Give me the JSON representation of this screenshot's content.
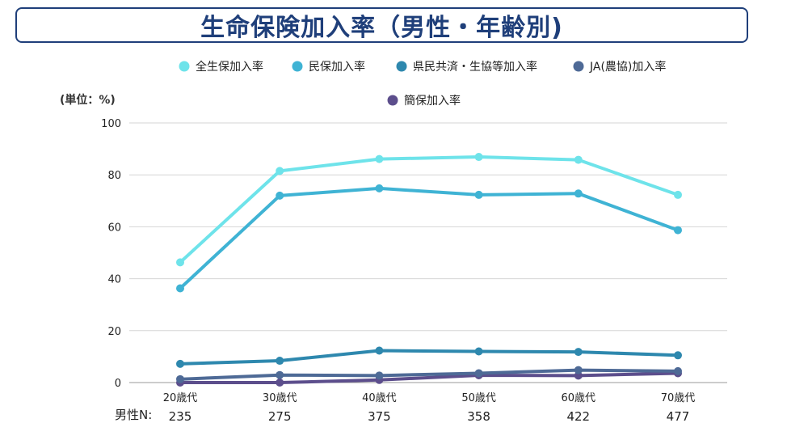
{
  "title": "生命保険加入率（男性・年齢別)",
  "chart_data": {
    "type": "line",
    "unit_label": "(単位：%)",
    "categories": [
      "20歳代",
      "30歳代",
      "40歳代",
      "50歳代",
      "60歳代",
      "70歳代"
    ],
    "ylim": [
      0,
      100
    ],
    "yticks": [
      0,
      20,
      40,
      60,
      80,
      100
    ],
    "grid": true,
    "legend_position": "top",
    "series": [
      {
        "name": "全生保加入率",
        "color": "#6ee3ea",
        "values": [
          46.3,
          81.5,
          86.1,
          86.9,
          85.8,
          72.3
        ]
      },
      {
        "name": "民保加入率",
        "color": "#3fb3d4",
        "values": [
          36.3,
          72.0,
          74.8,
          72.3,
          72.8,
          58.7
        ]
      },
      {
        "name": "県民共済・生協等加入率",
        "color": "#2e88ae",
        "values": [
          7.2,
          8.4,
          12.3,
          12.0,
          11.8,
          10.5
        ]
      },
      {
        "name": "JA(農協)加入率",
        "color": "#4e6a96",
        "values": [
          1.3,
          2.9,
          2.7,
          3.6,
          4.8,
          4.4
        ]
      },
      {
        "name": "簡保加入率",
        "color": "#5c4e8c",
        "values": [
          0.0,
          0.0,
          1.0,
          2.8,
          2.7,
          3.6
        ]
      }
    ],
    "sample_label": "男性N:",
    "sample_sizes": [
      "235",
      "275",
      "375",
      "358",
      "422",
      "477"
    ]
  }
}
